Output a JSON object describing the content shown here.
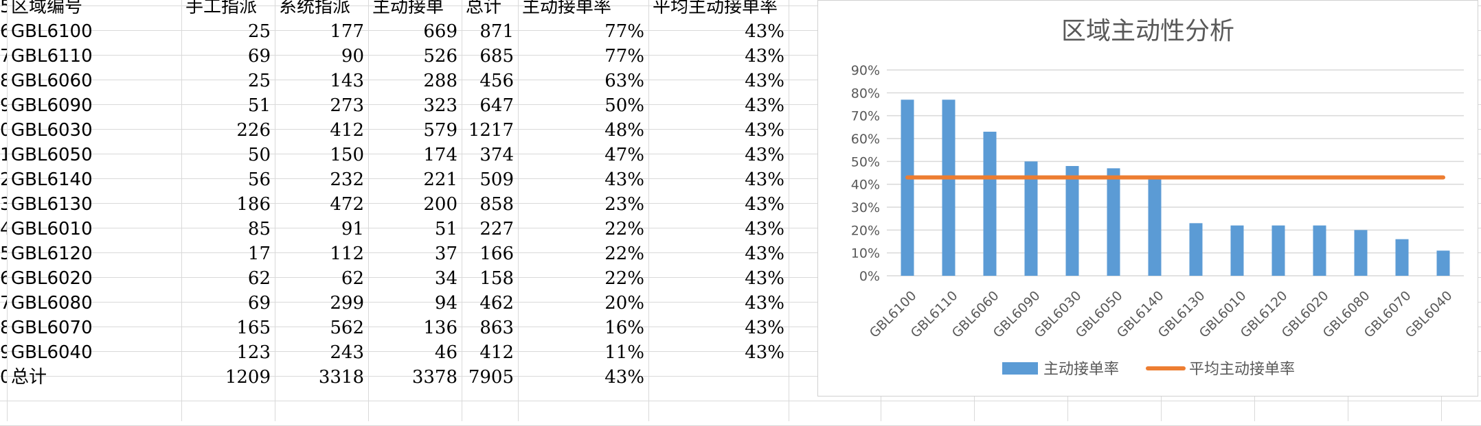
{
  "columns": [
    "区域编号",
    "手工指派",
    "系统指派",
    "主动接单",
    "总计",
    "主动接单率",
    "平均主动接单率"
  ],
  "row_headers": [
    "5",
    "6",
    "7",
    "8",
    "9",
    "0",
    "1",
    "2",
    "3",
    "4",
    "5",
    "6",
    "7",
    "8",
    "9",
    "0"
  ],
  "rows": [
    {
      "region": "GBL6100",
      "manual": "25",
      "system": "177",
      "active": "669",
      "total": "871",
      "rate": "77%",
      "avg": "43%"
    },
    {
      "region": "GBL6110",
      "manual": "69",
      "system": "90",
      "active": "526",
      "total": "685",
      "rate": "77%",
      "avg": "43%"
    },
    {
      "region": "GBL6060",
      "manual": "25",
      "system": "143",
      "active": "288",
      "total": "456",
      "rate": "63%",
      "avg": "43%"
    },
    {
      "region": "GBL6090",
      "manual": "51",
      "system": "273",
      "active": "323",
      "total": "647",
      "rate": "50%",
      "avg": "43%"
    },
    {
      "region": "GBL6030",
      "manual": "226",
      "system": "412",
      "active": "579",
      "total": "1217",
      "rate": "48%",
      "avg": "43%"
    },
    {
      "region": "GBL6050",
      "manual": "50",
      "system": "150",
      "active": "174",
      "total": "374",
      "rate": "47%",
      "avg": "43%"
    },
    {
      "region": "GBL6140",
      "manual": "56",
      "system": "232",
      "active": "221",
      "total": "509",
      "rate": "43%",
      "avg": "43%"
    },
    {
      "region": "GBL6130",
      "manual": "186",
      "system": "472",
      "active": "200",
      "total": "858",
      "rate": "23%",
      "avg": "43%"
    },
    {
      "region": "GBL6010",
      "manual": "85",
      "system": "91",
      "active": "51",
      "total": "227",
      "rate": "22%",
      "avg": "43%"
    },
    {
      "region": "GBL6120",
      "manual": "17",
      "system": "112",
      "active": "37",
      "total": "166",
      "rate": "22%",
      "avg": "43%"
    },
    {
      "region": "GBL6020",
      "manual": "62",
      "system": "62",
      "active": "34",
      "total": "158",
      "rate": "22%",
      "avg": "43%"
    },
    {
      "region": "GBL6080",
      "manual": "69",
      "system": "299",
      "active": "94",
      "total": "462",
      "rate": "20%",
      "avg": "43%"
    },
    {
      "region": "GBL6070",
      "manual": "165",
      "system": "562",
      "active": "136",
      "total": "863",
      "rate": "16%",
      "avg": "43%"
    },
    {
      "region": "GBL6040",
      "manual": "123",
      "system": "243",
      "active": "46",
      "total": "412",
      "rate": "11%",
      "avg": "43%"
    }
  ],
  "total_row": {
    "region": "总计",
    "manual": "1209",
    "system": "3318",
    "active": "3378",
    "total": "7905",
    "rate": "43%",
    "avg": ""
  },
  "colors": {
    "bar": "#5b9bd5",
    "line": "#ed7d31",
    "grid": "#d9d9d9",
    "axis_text": "#595959"
  },
  "chart_data": {
    "type": "bar",
    "title": "区域主动性分析",
    "categories": [
      "GBL6100",
      "GBL6110",
      "GBL6060",
      "GBL6090",
      "GBL6030",
      "GBL6050",
      "GBL6140",
      "GBL6130",
      "GBL6010",
      "GBL6120",
      "GBL6020",
      "GBL6080",
      "GBL6070",
      "GBL6040"
    ],
    "series": [
      {
        "name": "主动接单率",
        "type": "bar",
        "values": [
          77,
          77,
          63,
          50,
          48,
          47,
          43,
          23,
          22,
          22,
          22,
          20,
          16,
          11
        ]
      },
      {
        "name": "平均主动接单率",
        "type": "line",
        "values": [
          43,
          43,
          43,
          43,
          43,
          43,
          43,
          43,
          43,
          43,
          43,
          43,
          43,
          43
        ]
      }
    ],
    "ylim": [
      0,
      90
    ],
    "yticks": [
      "0%",
      "10%",
      "20%",
      "30%",
      "40%",
      "50%",
      "60%",
      "70%",
      "80%",
      "90%"
    ],
    "grid": true,
    "legend": "bottom",
    "xlabel": "",
    "ylabel": ""
  }
}
